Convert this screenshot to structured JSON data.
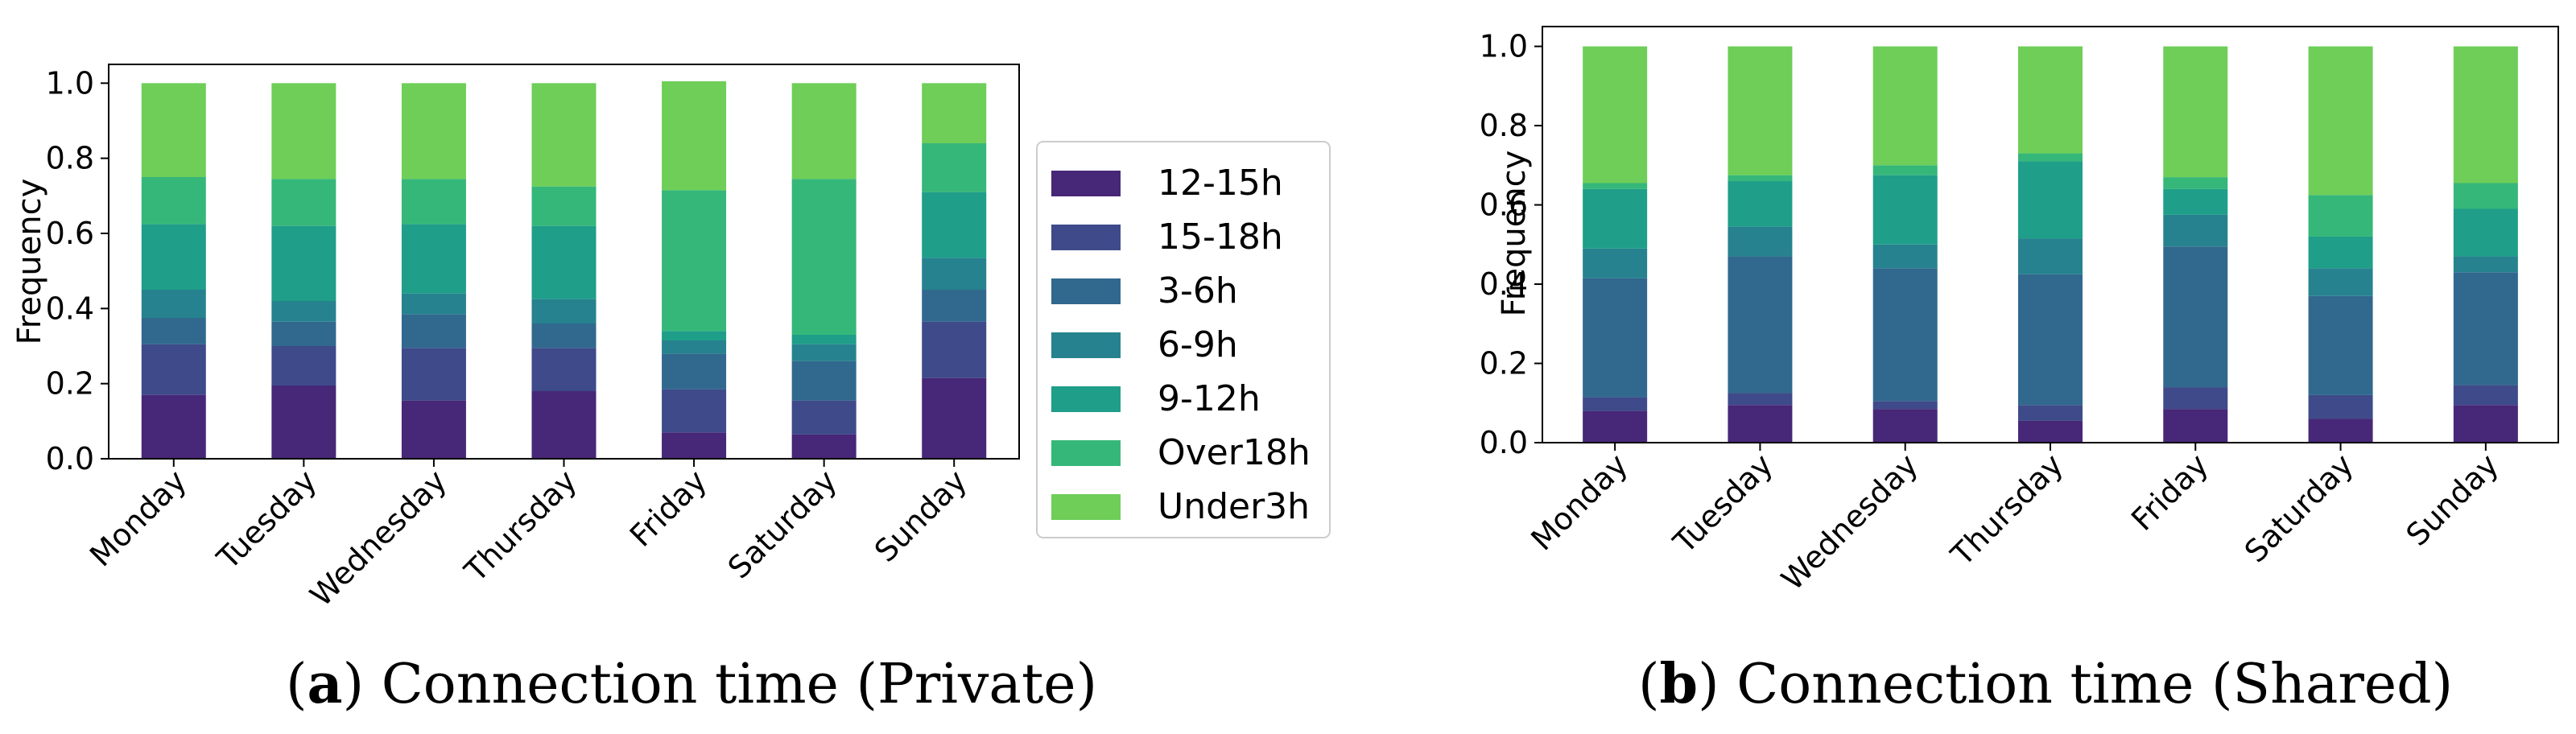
{
  "colors": {
    "12-15h": "#472777",
    "15-18h": "#3e4a89",
    "3-6h": "#31688e",
    "6-9h": "#26828e",
    "9-12h": "#1f9e89",
    "Over18h": "#35b779",
    "Under3h": "#6ece58"
  },
  "captions": [
    {
      "label": "a",
      "text": "Connection time (Private)"
    },
    {
      "label": "b",
      "text": "Connection time (Shared)"
    }
  ],
  "chart_data": [
    {
      "type": "bar",
      "stacked": true,
      "title": "",
      "xlabel": "",
      "ylabel": "Frequency",
      "ylim": [
        0,
        1.05
      ],
      "yticks": [
        "0.0",
        "0.2",
        "0.4",
        "0.6",
        "0.8",
        "1.0"
      ],
      "categories": [
        "Monday",
        "Tuesday",
        "Wednesday",
        "Thursday",
        "Friday",
        "Saturday",
        "Sunday"
      ],
      "legend": [
        "12-15h",
        "15-18h",
        "3-6h",
        "6-9h",
        "9-12h",
        "Over18h",
        "Under3h"
      ],
      "legend_position": "right",
      "series": [
        {
          "name": "12-15h",
          "values": [
            0.17,
            0.195,
            0.155,
            0.18,
            0.07,
            0.065,
            0.215
          ]
        },
        {
          "name": "15-18h",
          "values": [
            0.135,
            0.105,
            0.14,
            0.115,
            0.115,
            0.09,
            0.15
          ]
        },
        {
          "name": "3-6h",
          "values": [
            0.07,
            0.065,
            0.09,
            0.065,
            0.095,
            0.105,
            0.085
          ]
        },
        {
          "name": "6-9h",
          "values": [
            0.075,
            0.055,
            0.055,
            0.065,
            0.035,
            0.045,
            0.085
          ]
        },
        {
          "name": "9-12h",
          "values": [
            0.175,
            0.2,
            0.185,
            0.195,
            0.025,
            0.025,
            0.175
          ]
        },
        {
          "name": "Over18h",
          "values": [
            0.125,
            0.125,
            0.12,
            0.105,
            0.375,
            0.415,
            0.13
          ]
        },
        {
          "name": "Under3h",
          "values": [
            0.25,
            0.255,
            0.255,
            0.275,
            0.29,
            0.255,
            0.16
          ]
        }
      ]
    },
    {
      "type": "bar",
      "stacked": true,
      "title": "",
      "xlabel": "",
      "ylabel": "Frequency",
      "ylim": [
        0,
        1.05
      ],
      "yticks": [
        "0.0",
        "0.2",
        "0.4",
        "0.6",
        "0.8",
        "1.0"
      ],
      "categories": [
        "Monday",
        "Tuesday",
        "Wednesday",
        "Thursday",
        "Friday",
        "Saturday",
        "Sunday"
      ],
      "series": [
        {
          "name": "12-15h",
          "values": [
            0.08,
            0.095,
            0.085,
            0.055,
            0.085,
            0.06,
            0.095
          ]
        },
        {
          "name": "15-18h",
          "values": [
            0.035,
            0.03,
            0.02,
            0.04,
            0.055,
            0.06,
            0.05
          ]
        },
        {
          "name": "3-6h",
          "values": [
            0.3,
            0.345,
            0.335,
            0.33,
            0.355,
            0.25,
            0.285
          ]
        },
        {
          "name": "6-9h",
          "values": [
            0.075,
            0.075,
            0.06,
            0.09,
            0.08,
            0.07,
            0.04
          ]
        },
        {
          "name": "9-12h",
          "values": [
            0.15,
            0.115,
            0.175,
            0.195,
            0.065,
            0.08,
            0.12
          ]
        },
        {
          "name": "Over18h",
          "values": [
            0.015,
            0.015,
            0.025,
            0.02,
            0.03,
            0.105,
            0.065
          ]
        },
        {
          "name": "Under3h",
          "values": [
            0.345,
            0.325,
            0.3,
            0.27,
            0.33,
            0.375,
            0.345
          ]
        }
      ]
    }
  ]
}
